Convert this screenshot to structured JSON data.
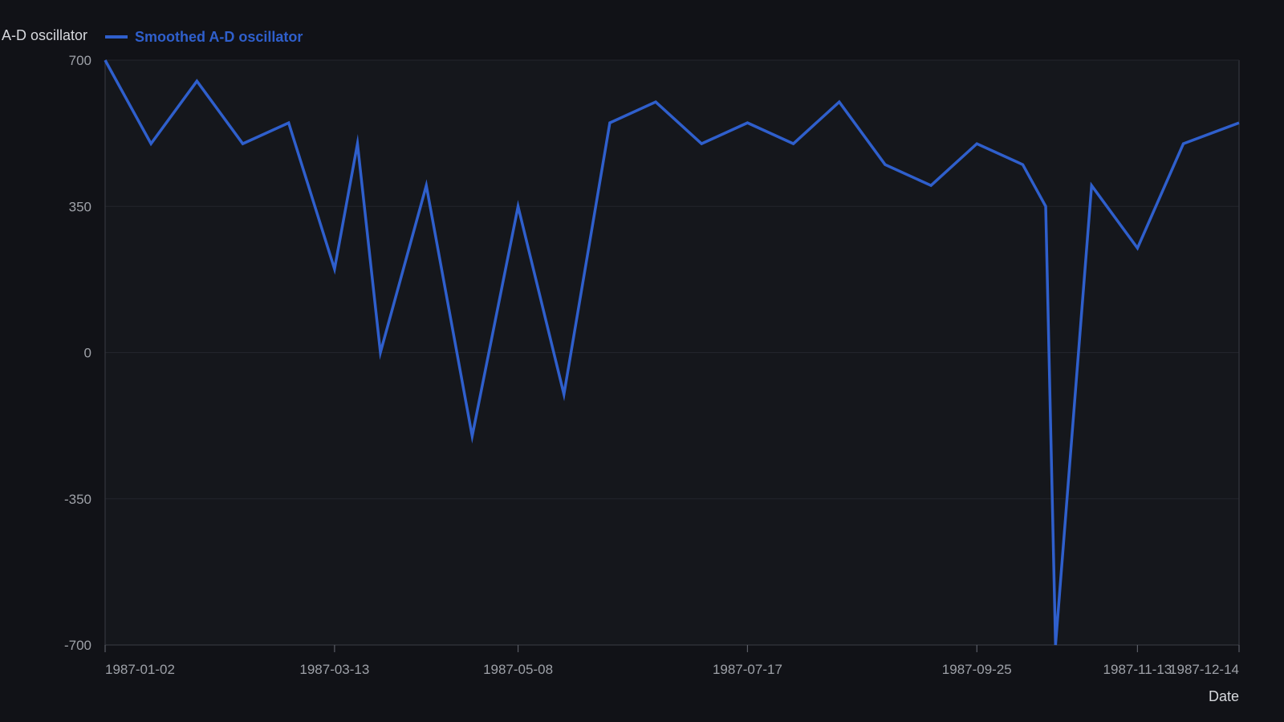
{
  "chart_data": {
    "type": "line",
    "ylabel": "A-D oscillator",
    "xlabel": "Date",
    "ylim": [
      -700,
      700
    ],
    "yticks": [
      700,
      350,
      0,
      -350,
      -700
    ],
    "xlim": [
      "1987-01-02",
      "1987-12-14"
    ],
    "xticks": [
      "1987-01-02",
      "1987-03-13",
      "1987-05-08",
      "1987-07-17",
      "1987-09-25",
      "1987-11-13",
      "1987-12-14"
    ],
    "grid": true,
    "legend_position": "top-left",
    "series": [
      {
        "name": "Smoothed A-D oscillator",
        "color": "#2f5fcc",
        "x": [
          "1987-01-02",
          "1987-01-16",
          "1987-01-30",
          "1987-02-13",
          "1987-02-27",
          "1987-03-13",
          "1987-03-20",
          "1987-03-27",
          "1987-04-10",
          "1987-04-24",
          "1987-05-08",
          "1987-05-22",
          "1987-06-05",
          "1987-06-19",
          "1987-07-03",
          "1987-07-17",
          "1987-07-31",
          "1987-08-14",
          "1987-08-28",
          "1987-09-11",
          "1987-09-25",
          "1987-10-09",
          "1987-10-16",
          "1987-10-19",
          "1987-10-30",
          "1987-11-13",
          "1987-11-27",
          "1987-12-14"
        ],
        "y": [
          700,
          500,
          650,
          500,
          550,
          200,
          500,
          0,
          400,
          -200,
          350,
          -100,
          550,
          600,
          500,
          550,
          500,
          600,
          450,
          400,
          500,
          450,
          350,
          -700,
          400,
          250,
          500,
          550
        ]
      }
    ]
  }
}
